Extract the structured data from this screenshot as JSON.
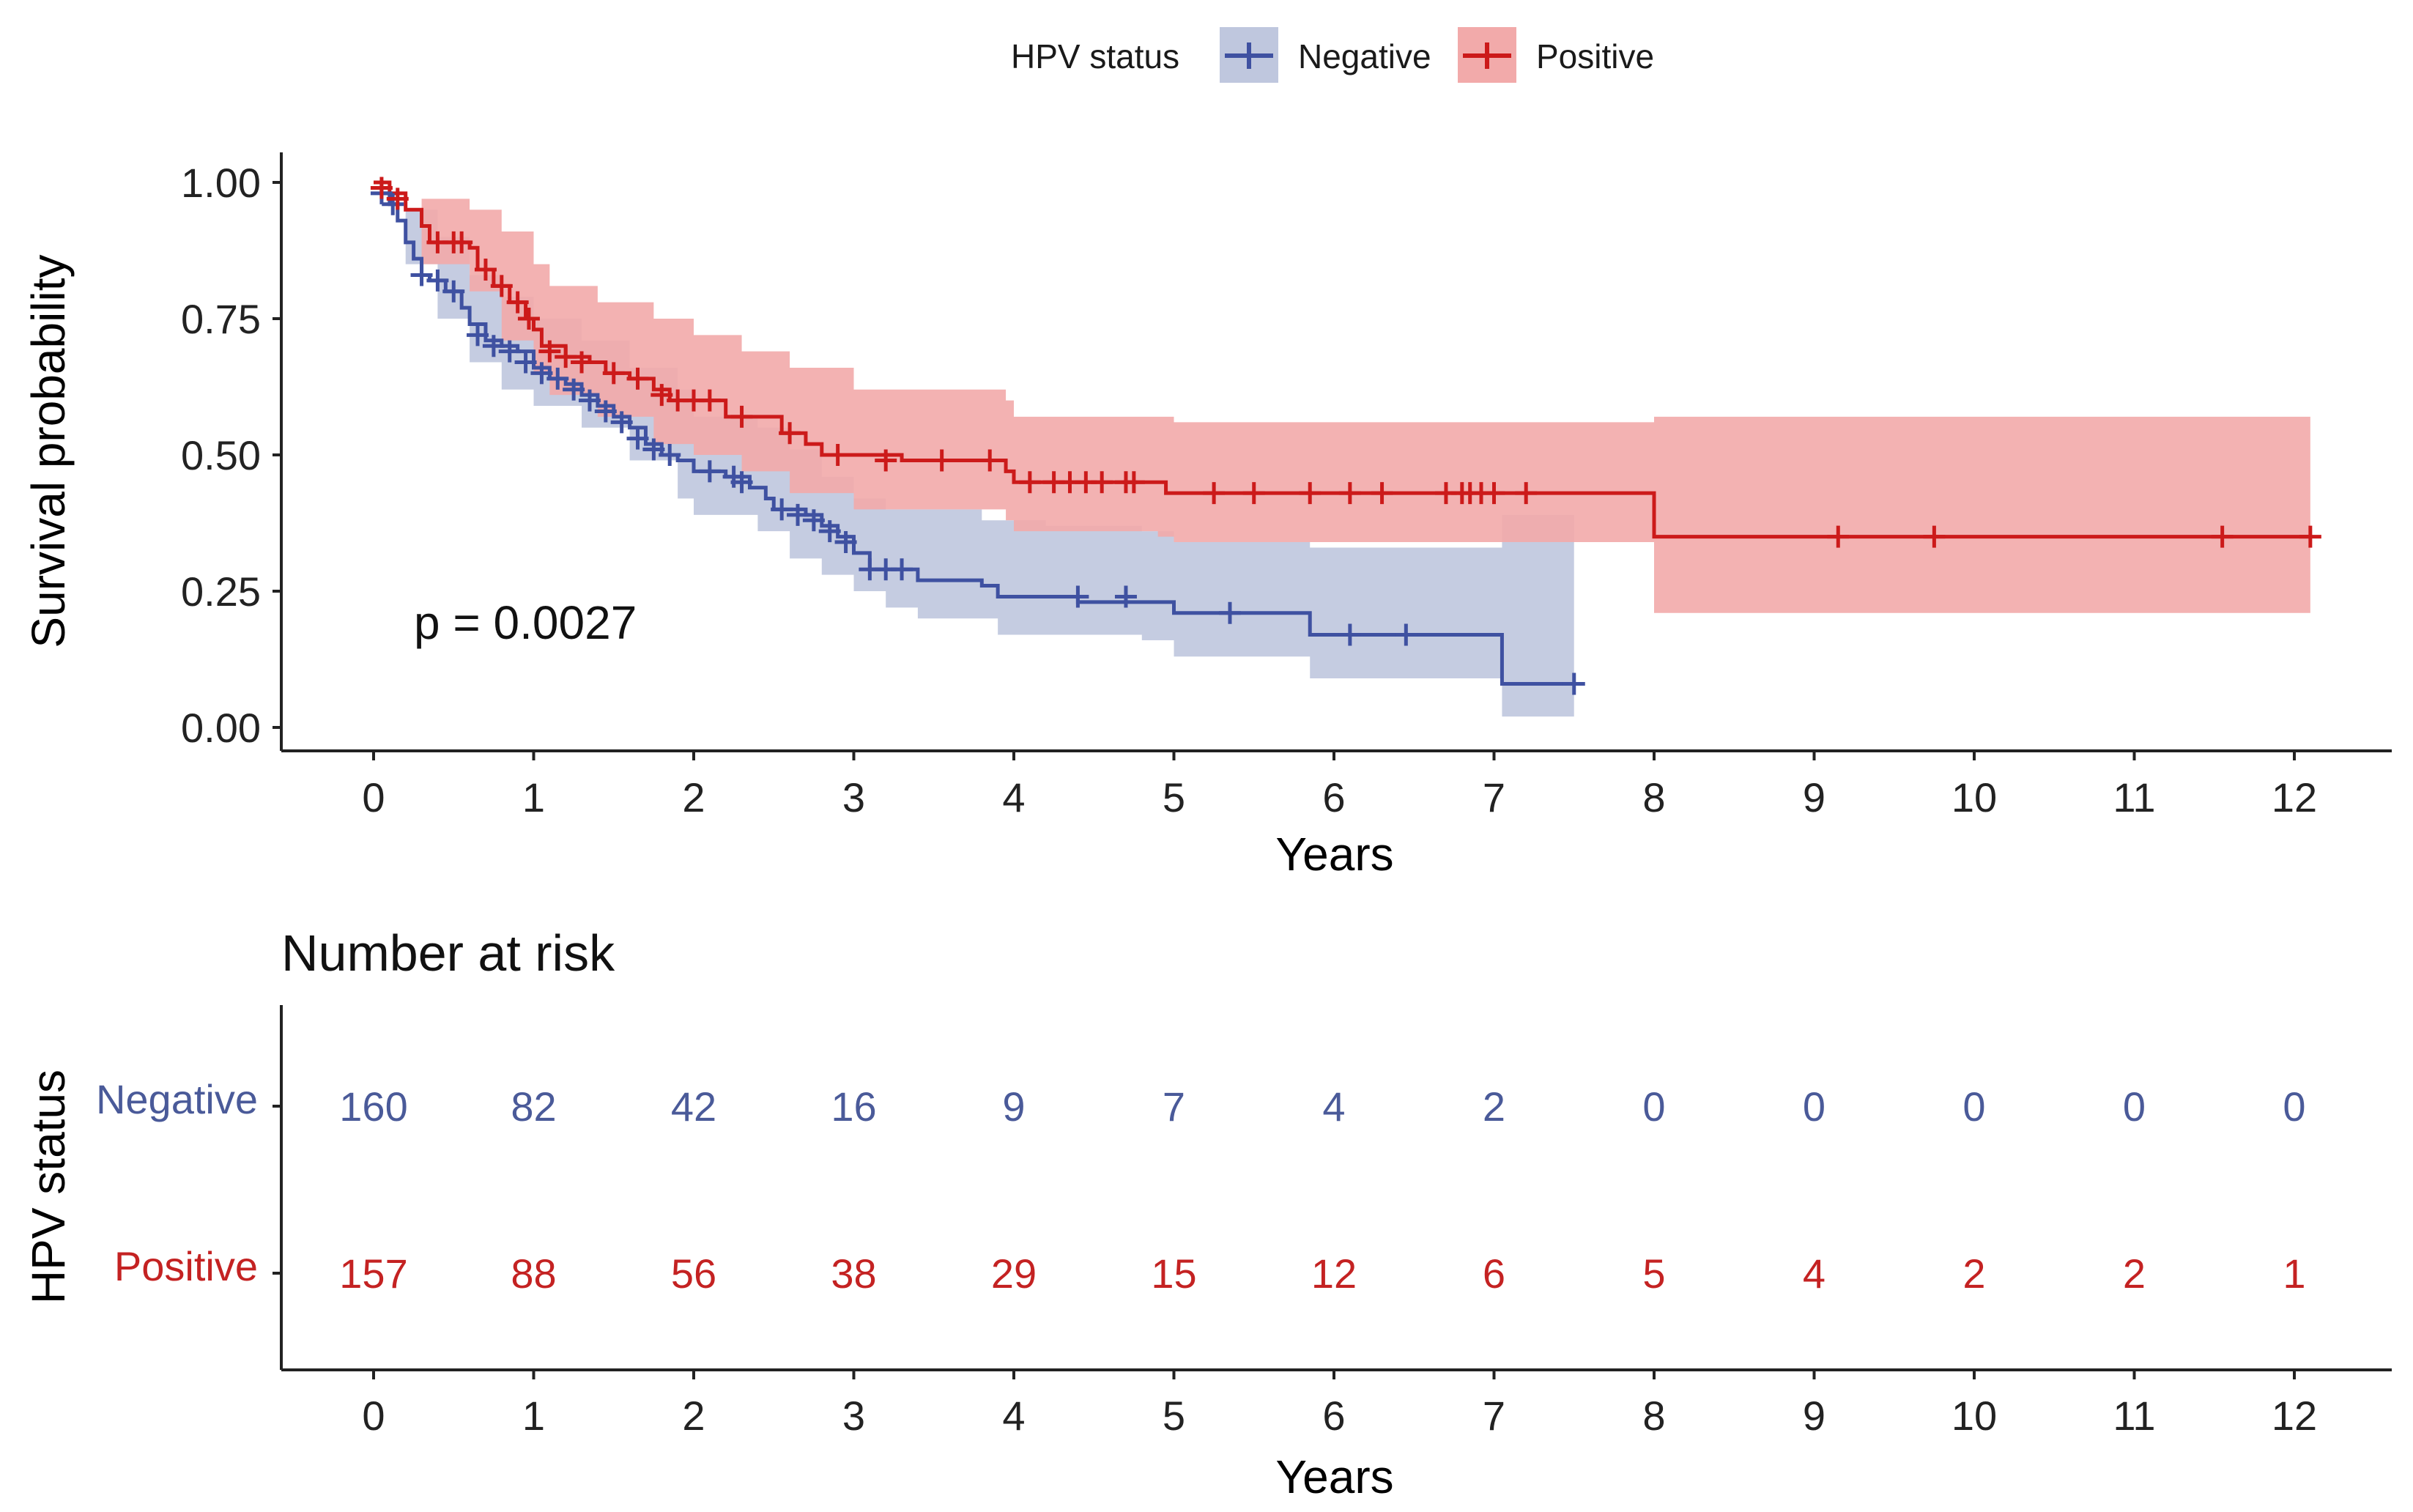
{
  "chart_data": [
    {
      "type": "line",
      "subtype": "kaplan-meier",
      "title": "",
      "xlabel": "Years",
      "ylabel": "Survival probability",
      "xlim": [
        0,
        12
      ],
      "ylim": [
        0,
        1
      ],
      "x_ticks": [
        0,
        1,
        2,
        3,
        4,
        5,
        6,
        7,
        8,
        9,
        10,
        11,
        12
      ],
      "y_ticks": [
        "0.00",
        "0.25",
        "0.50",
        "0.75",
        "1.00"
      ],
      "legend": {
        "title": "HPV status",
        "position": "top"
      },
      "p_value_text": "p = 0.0027",
      "series": [
        {
          "name": "Negative",
          "color": "#3f51a1",
          "fill": "#bfc7de",
          "step": [
            [
              0,
              1.0
            ],
            [
              0.05,
              0.98
            ],
            [
              0.1,
              0.96
            ],
            [
              0.15,
              0.93
            ],
            [
              0.2,
              0.89
            ],
            [
              0.25,
              0.86
            ],
            [
              0.3,
              0.83
            ],
            [
              0.35,
              0.82
            ],
            [
              0.45,
              0.8
            ],
            [
              0.55,
              0.77
            ],
            [
              0.6,
              0.74
            ],
            [
              0.7,
              0.71
            ],
            [
              0.8,
              0.7
            ],
            [
              0.9,
              0.69
            ],
            [
              1.0,
              0.66
            ],
            [
              1.1,
              0.64
            ],
            [
              1.2,
              0.63
            ],
            [
              1.3,
              0.61
            ],
            [
              1.4,
              0.59
            ],
            [
              1.5,
              0.57
            ],
            [
              1.6,
              0.55
            ],
            [
              1.7,
              0.52
            ],
            [
              1.8,
              0.5
            ],
            [
              1.9,
              0.49
            ],
            [
              2.0,
              0.47
            ],
            [
              2.2,
              0.46
            ],
            [
              2.35,
              0.44
            ],
            [
              2.45,
              0.42
            ],
            [
              2.5,
              0.4
            ],
            [
              2.7,
              0.39
            ],
            [
              2.8,
              0.37
            ],
            [
              2.9,
              0.35
            ],
            [
              3.0,
              0.32
            ],
            [
              3.1,
              0.29
            ],
            [
              3.4,
              0.27
            ],
            [
              3.8,
              0.26
            ],
            [
              3.9,
              0.24
            ],
            [
              4.2,
              0.24
            ],
            [
              4.4,
              0.23
            ],
            [
              4.7,
              0.23
            ],
            [
              5.0,
              0.21
            ],
            [
              5.8,
              0.21
            ],
            [
              5.85,
              0.17
            ],
            [
              7.0,
              0.17
            ],
            [
              7.05,
              0.08
            ],
            [
              7.5,
              0.08
            ]
          ],
          "ci_upper": [
            [
              0,
              1.0
            ],
            [
              0.2,
              0.95
            ],
            [
              0.4,
              0.9
            ],
            [
              0.6,
              0.83
            ],
            [
              0.8,
              0.79
            ],
            [
              1.0,
              0.75
            ],
            [
              1.3,
              0.71
            ],
            [
              1.6,
              0.66
            ],
            [
              1.9,
              0.62
            ],
            [
              2.0,
              0.57
            ],
            [
              2.4,
              0.55
            ],
            [
              2.6,
              0.51
            ],
            [
              2.8,
              0.46
            ],
            [
              3.0,
              0.42
            ],
            [
              3.2,
              0.4
            ],
            [
              3.8,
              0.38
            ],
            [
              4.2,
              0.37
            ],
            [
              4.8,
              0.36
            ],
            [
              5.0,
              0.34
            ],
            [
              5.8,
              0.34
            ],
            [
              5.85,
              0.33
            ],
            [
              7.05,
              0.39
            ],
            [
              7.5,
              0.39
            ]
          ],
          "ci_lower": [
            [
              0,
              1.0
            ],
            [
              0.2,
              0.85
            ],
            [
              0.4,
              0.75
            ],
            [
              0.6,
              0.67
            ],
            [
              0.8,
              0.62
            ],
            [
              1.0,
              0.59
            ],
            [
              1.3,
              0.55
            ],
            [
              1.6,
              0.49
            ],
            [
              1.9,
              0.42
            ],
            [
              2.0,
              0.39
            ],
            [
              2.4,
              0.36
            ],
            [
              2.6,
              0.31
            ],
            [
              2.8,
              0.28
            ],
            [
              3.0,
              0.25
            ],
            [
              3.2,
              0.22
            ],
            [
              3.4,
              0.2
            ],
            [
              3.9,
              0.17
            ],
            [
              4.8,
              0.16
            ],
            [
              5.0,
              0.13
            ],
            [
              5.85,
              0.09
            ],
            [
              7.05,
              0.02
            ],
            [
              7.5,
              0.02
            ]
          ],
          "censored": [
            [
              0.05,
              0.98
            ],
            [
              0.12,
              0.96
            ],
            [
              0.3,
              0.83
            ],
            [
              0.4,
              0.82
            ],
            [
              0.5,
              0.8
            ],
            [
              0.65,
              0.72
            ],
            [
              0.75,
              0.7
            ],
            [
              0.85,
              0.69
            ],
            [
              0.95,
              0.67
            ],
            [
              1.05,
              0.65
            ],
            [
              1.15,
              0.64
            ],
            [
              1.25,
              0.62
            ],
            [
              1.35,
              0.6
            ],
            [
              1.45,
              0.58
            ],
            [
              1.55,
              0.56
            ],
            [
              1.65,
              0.53
            ],
            [
              1.75,
              0.51
            ],
            [
              1.85,
              0.5
            ],
            [
              2.1,
              0.47
            ],
            [
              2.25,
              0.46
            ],
            [
              2.3,
              0.45
            ],
            [
              2.55,
              0.4
            ],
            [
              2.65,
              0.39
            ],
            [
              2.75,
              0.38
            ],
            [
              2.85,
              0.36
            ],
            [
              2.95,
              0.34
            ],
            [
              3.1,
              0.29
            ],
            [
              3.2,
              0.29
            ],
            [
              3.3,
              0.29
            ],
            [
              4.4,
              0.24
            ],
            [
              4.7,
              0.24
            ],
            [
              5.35,
              0.21
            ],
            [
              6.1,
              0.17
            ],
            [
              6.45,
              0.17
            ],
            [
              7.5,
              0.08
            ]
          ]
        },
        {
          "name": "Positive",
          "color": "#cc1a1a",
          "fill": "#f2aaaa",
          "step": [
            [
              0,
              1.0
            ],
            [
              0.1,
              0.98
            ],
            [
              0.2,
              0.95
            ],
            [
              0.3,
              0.92
            ],
            [
              0.35,
              0.89
            ],
            [
              0.6,
              0.88
            ],
            [
              0.65,
              0.84
            ],
            [
              0.75,
              0.81
            ],
            [
              0.85,
              0.78
            ],
            [
              0.95,
              0.75
            ],
            [
              1.0,
              0.73
            ],
            [
              1.05,
              0.7
            ],
            [
              1.2,
              0.68
            ],
            [
              1.35,
              0.67
            ],
            [
              1.45,
              0.65
            ],
            [
              1.6,
              0.64
            ],
            [
              1.75,
              0.62
            ],
            [
              1.85,
              0.6
            ],
            [
              2.2,
              0.57
            ],
            [
              2.55,
              0.54
            ],
            [
              2.7,
              0.52
            ],
            [
              2.8,
              0.5
            ],
            [
              3.3,
              0.49
            ],
            [
              3.5,
              0.49
            ],
            [
              3.95,
              0.47
            ],
            [
              4.0,
              0.45
            ],
            [
              4.9,
              0.45
            ],
            [
              4.95,
              0.43
            ],
            [
              8.0,
              0.43
            ],
            [
              8.0,
              0.35
            ],
            [
              12.1,
              0.35
            ]
          ],
          "ci_upper": [
            [
              0,
              1.0
            ],
            [
              0.3,
              0.97
            ],
            [
              0.6,
              0.95
            ],
            [
              0.8,
              0.91
            ],
            [
              1.0,
              0.85
            ],
            [
              1.1,
              0.81
            ],
            [
              1.4,
              0.78
            ],
            [
              1.75,
              0.75
            ],
            [
              2.0,
              0.72
            ],
            [
              2.3,
              0.69
            ],
            [
              2.6,
              0.66
            ],
            [
              3.0,
              0.62
            ],
            [
              3.95,
              0.6
            ],
            [
              4.0,
              0.57
            ],
            [
              4.9,
              0.57
            ],
            [
              5.0,
              0.56
            ],
            [
              8.0,
              0.56
            ],
            [
              8.0,
              0.57
            ],
            [
              12.1,
              0.57
            ]
          ],
          "ci_lower": [
            [
              0,
              1.0
            ],
            [
              0.3,
              0.85
            ],
            [
              0.6,
              0.8
            ],
            [
              0.8,
              0.71
            ],
            [
              1.0,
              0.65
            ],
            [
              1.1,
              0.61
            ],
            [
              1.4,
              0.57
            ],
            [
              1.75,
              0.52
            ],
            [
              2.0,
              0.5
            ],
            [
              2.3,
              0.47
            ],
            [
              2.6,
              0.43
            ],
            [
              3.0,
              0.4
            ],
            [
              3.95,
              0.38
            ],
            [
              4.0,
              0.36
            ],
            [
              4.9,
              0.35
            ],
            [
              5.0,
              0.34
            ],
            [
              8.0,
              0.34
            ],
            [
              8.0,
              0.21
            ],
            [
              12.1,
              0.21
            ]
          ],
          "censored": [
            [
              0.05,
              0.99
            ],
            [
              0.15,
              0.97
            ],
            [
              0.4,
              0.89
            ],
            [
              0.5,
              0.89
            ],
            [
              0.55,
              0.89
            ],
            [
              0.7,
              0.84
            ],
            [
              0.8,
              0.81
            ],
            [
              0.9,
              0.78
            ],
            [
              0.97,
              0.75
            ],
            [
              1.1,
              0.69
            ],
            [
              1.2,
              0.68
            ],
            [
              1.3,
              0.67
            ],
            [
              1.5,
              0.65
            ],
            [
              1.65,
              0.64
            ],
            [
              1.8,
              0.61
            ],
            [
              1.9,
              0.6
            ],
            [
              2.0,
              0.6
            ],
            [
              2.1,
              0.6
            ],
            [
              2.3,
              0.57
            ],
            [
              2.6,
              0.54
            ],
            [
              2.9,
              0.5
            ],
            [
              3.2,
              0.49
            ],
            [
              3.55,
              0.49
            ],
            [
              3.85,
              0.49
            ],
            [
              4.1,
              0.45
            ],
            [
              4.25,
              0.45
            ],
            [
              4.35,
              0.45
            ],
            [
              4.45,
              0.45
            ],
            [
              4.55,
              0.45
            ],
            [
              4.7,
              0.45
            ],
            [
              4.75,
              0.45
            ],
            [
              5.25,
              0.43
            ],
            [
              5.5,
              0.43
            ],
            [
              5.85,
              0.43
            ],
            [
              6.1,
              0.43
            ],
            [
              6.3,
              0.43
            ],
            [
              6.7,
              0.43
            ],
            [
              6.8,
              0.43
            ],
            [
              6.85,
              0.43
            ],
            [
              6.92,
              0.43
            ],
            [
              7.0,
              0.43
            ],
            [
              7.2,
              0.43
            ],
            [
              9.15,
              0.35
            ],
            [
              9.75,
              0.35
            ],
            [
              11.55,
              0.35
            ],
            [
              12.1,
              0.35
            ]
          ]
        }
      ]
    },
    {
      "type": "table",
      "title": "Number at risk",
      "xlabel": "Years",
      "ylabel": "HPV status",
      "x_ticks": [
        0,
        1,
        2,
        3,
        4,
        5,
        6,
        7,
        8,
        9,
        10,
        11,
        12
      ],
      "rows": [
        {
          "name": "Negative",
          "color": "#4a5a99",
          "values": [
            160,
            82,
            42,
            16,
            9,
            7,
            4,
            2,
            0,
            0,
            0,
            0,
            0
          ]
        },
        {
          "name": "Positive",
          "color": "#c42222",
          "values": [
            157,
            88,
            56,
            38,
            29,
            15,
            12,
            6,
            5,
            4,
            2,
            2,
            1
          ]
        }
      ]
    }
  ]
}
